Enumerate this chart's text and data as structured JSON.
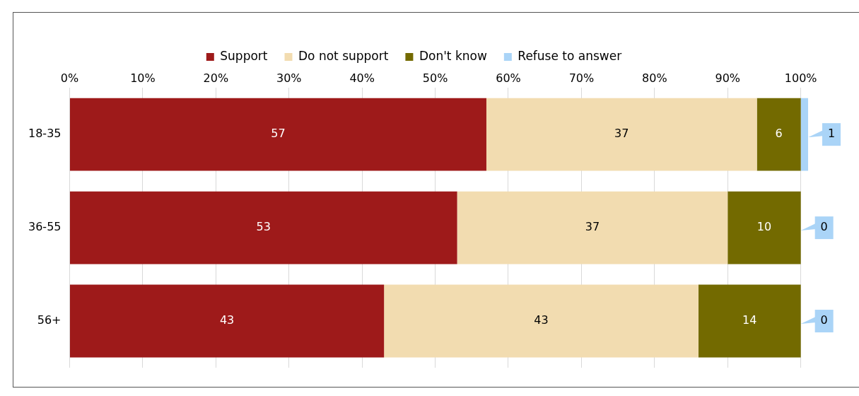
{
  "chart_data": {
    "type": "bar",
    "orientation": "horizontal",
    "stacked": true,
    "categories": [
      "18-35",
      "36-55",
      "56+"
    ],
    "series": [
      {
        "name": "Support",
        "color": "#9e1a1a",
        "values": [
          57,
          53,
          43
        ]
      },
      {
        "name": "Do not support",
        "color": "#f2dcb0",
        "values": [
          37,
          37,
          43
        ]
      },
      {
        "name": "Don't know",
        "color": "#736a00",
        "values": [
          6,
          10,
          14
        ]
      },
      {
        "name": "Refuse to answer",
        "color": "#aad4f7",
        "values": [
          1,
          0,
          0
        ]
      }
    ],
    "xlim": [
      0,
      101
    ],
    "xticks": [
      {
        "value": 0,
        "label": "0%"
      },
      {
        "value": 10,
        "label": "10%"
      },
      {
        "value": 20,
        "label": "20%"
      },
      {
        "value": 30,
        "label": "30%"
      },
      {
        "value": 40,
        "label": "40%"
      },
      {
        "value": 50,
        "label": "50%"
      },
      {
        "value": 60,
        "label": "60%"
      },
      {
        "value": 70,
        "label": "70%"
      },
      {
        "value": 80,
        "label": "80%"
      },
      {
        "value": 90,
        "label": "90%"
      },
      {
        "value": 100,
        "label": "100%"
      }
    ],
    "grid": "x",
    "legend": "top",
    "data_labels": true
  }
}
